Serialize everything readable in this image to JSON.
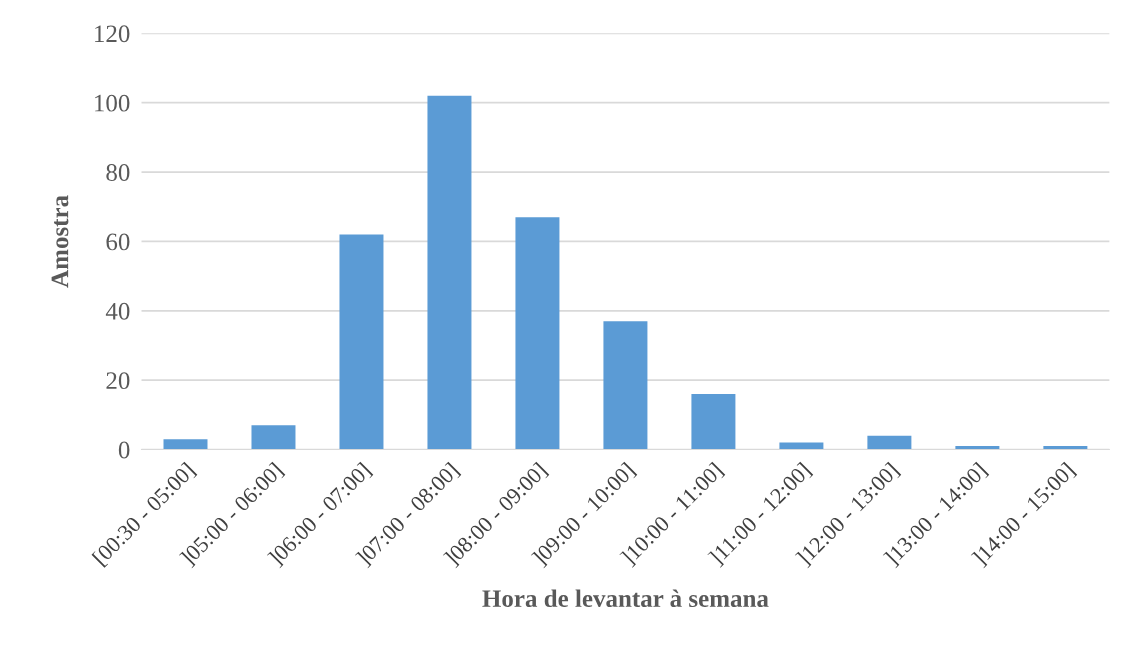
{
  "chart_data": {
    "type": "bar",
    "xlabel": "Hora de levantar à semana",
    "ylabel": "Amostra",
    "categories": [
      "[00:30 - 05:00]",
      "]05:00 - 06:00]",
      "]06:00 - 07:00]",
      "]07:00 - 08:00]",
      "]08:00 - 09:00]",
      "]09:00 - 10:00]",
      "]10:00 - 11:00]",
      "]11:00 - 12:00]",
      "]12:00 - 13:00]",
      "]13:00 - 14:00]",
      "]14:00 - 15:00]"
    ],
    "values": [
      3,
      7,
      62,
      102,
      67,
      37,
      16,
      2,
      4,
      1,
      1
    ],
    "color": "#5b9bd5",
    "ylim": [
      0,
      120
    ],
    "yticks": [
      0,
      20,
      40,
      60,
      80,
      100,
      120
    ],
    "grid": "y"
  }
}
